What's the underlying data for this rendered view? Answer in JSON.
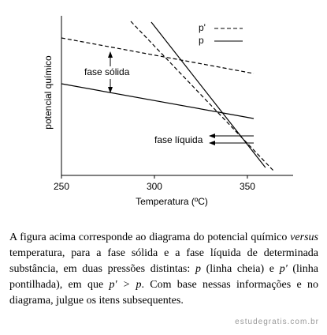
{
  "chart_data": {
    "type": "line",
    "xlabel": "Temperatura (ºC)",
    "ylabel": "potencial químico",
    "xlim": [
      250,
      374.6
    ],
    "xticks": [
      250,
      300,
      350
    ],
    "ylim": [
      0,
      100
    ],
    "series": [
      {
        "name": "p'",
        "dash": "dashed",
        "color": "#000",
        "segments": [
          {
            "x": [
              250,
              353.4
            ],
            "values": [
              87,
              64.5
            ]
          },
          {
            "x": [
              287.3,
              364
            ],
            "values": [
              97.5,
              3
            ]
          }
        ]
      },
      {
        "name": "p",
        "dash": "solid",
        "color": "#000",
        "segments": [
          {
            "x": [
              250,
              353.4
            ],
            "values": [
              58,
              36
            ]
          },
          {
            "x": [
              298.3,
              359.7
            ],
            "values": [
              97,
              5
            ]
          }
        ]
      }
    ],
    "annotations": [
      "fase sólida",
      "fase líquida"
    ]
  },
  "caption": [
    {
      "text": "A figura acima corresponde ao diagrama do potencial químico ",
      "italic": false
    },
    {
      "text": "versus",
      "italic": true
    },
    {
      "text": " temperatura, para a fase sólida e a fase líquida de determinada substância, em duas pressões distintas: ",
      "italic": false
    },
    {
      "text": "p",
      "italic": true
    },
    {
      "text": " (linha cheia) e ",
      "italic": false
    },
    {
      "text": "p'",
      "italic": true
    },
    {
      "text": " (linha pontilhada), em que ",
      "italic": false
    },
    {
      "text": "p' > p",
      "italic": true
    },
    {
      "text": ". Com base nessas informações e no diagrama, julgue os itens subsequentes.",
      "italic": false
    }
  ],
  "watermark": "estudegratis.com.br"
}
